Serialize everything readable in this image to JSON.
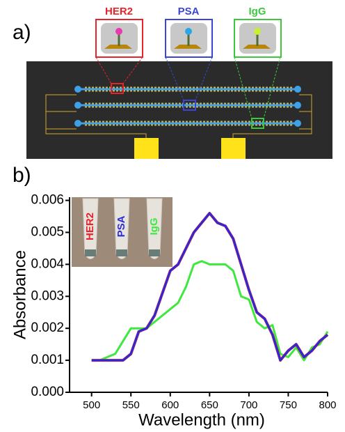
{
  "panels": [
    "a)",
    "b)"
  ],
  "diagram": {
    "labels": [
      {
        "text": "HER2",
        "color": "#e8232a"
      },
      {
        "text": "PSA",
        "color": "#3a45d6"
      },
      {
        "text": "IgG",
        "color": "#3cc83c"
      }
    ]
  },
  "chart_data": {
    "type": "line",
    "xlabel": "Wavelength (nm)",
    "ylabel": "Absorbance",
    "x": [
      500,
      510,
      520,
      530,
      540,
      550,
      560,
      570,
      580,
      590,
      600,
      610,
      620,
      630,
      640,
      650,
      660,
      670,
      680,
      690,
      700,
      710,
      720,
      730,
      740,
      750,
      760,
      770,
      780,
      790,
      800
    ],
    "series": [
      {
        "name": "HER2",
        "color": "#e8232a",
        "values": [
          0.001,
          0.001,
          0.001,
          0.001,
          0.001,
          0.0012,
          0.0019,
          0.002,
          0.0024,
          0.0031,
          0.0038,
          0.004,
          0.0045,
          0.005,
          0.0053,
          0.0056,
          0.0053,
          0.0052,
          0.0048,
          0.004,
          0.0032,
          0.0025,
          0.0023,
          0.0018,
          0.001,
          0.0013,
          0.0015,
          0.0011,
          0.0013,
          0.0016,
          0.0018
        ]
      },
      {
        "name": "PSA",
        "color": "#2a2ad8",
        "values": [
          0.001,
          0.001,
          0.001,
          0.001,
          0.001,
          0.0012,
          0.0019,
          0.002,
          0.0024,
          0.0031,
          0.0038,
          0.004,
          0.0045,
          0.005,
          0.0053,
          0.0056,
          0.0053,
          0.0052,
          0.0048,
          0.004,
          0.0032,
          0.0025,
          0.0023,
          0.0018,
          0.001,
          0.0013,
          0.0015,
          0.0011,
          0.0013,
          0.0016,
          0.0018
        ]
      },
      {
        "name": "IgG",
        "color": "#3ee83e",
        "values": [
          0.001,
          0.001,
          0.0011,
          0.0012,
          0.0016,
          0.002,
          0.002,
          0.002,
          0.0022,
          0.0024,
          0.0026,
          0.0028,
          0.0033,
          0.004,
          0.0041,
          0.004,
          0.004,
          0.004,
          0.0038,
          0.003,
          0.0029,
          0.0022,
          0.002,
          0.0021,
          0.0012,
          0.0011,
          0.0014,
          0.001,
          0.0014,
          0.0015,
          0.0019
        ]
      }
    ],
    "xlim": [
      472,
      800
    ],
    "ylim": [
      0,
      0.0061
    ],
    "xticks": [
      500,
      550,
      600,
      650,
      700,
      750,
      800
    ],
    "yticks": [
      {
        "value": 0,
        "label": "0.000"
      },
      {
        "value": 0.001,
        "label": "0.001"
      },
      {
        "value": 0.002,
        "label": "0.002"
      },
      {
        "value": 0.003,
        "label": "0.003"
      },
      {
        "value": 0.004,
        "label": "0.004"
      },
      {
        "value": 0.005,
        "label": "0.005"
      },
      {
        "value": 0.006,
        "label": "0.006"
      }
    ]
  }
}
